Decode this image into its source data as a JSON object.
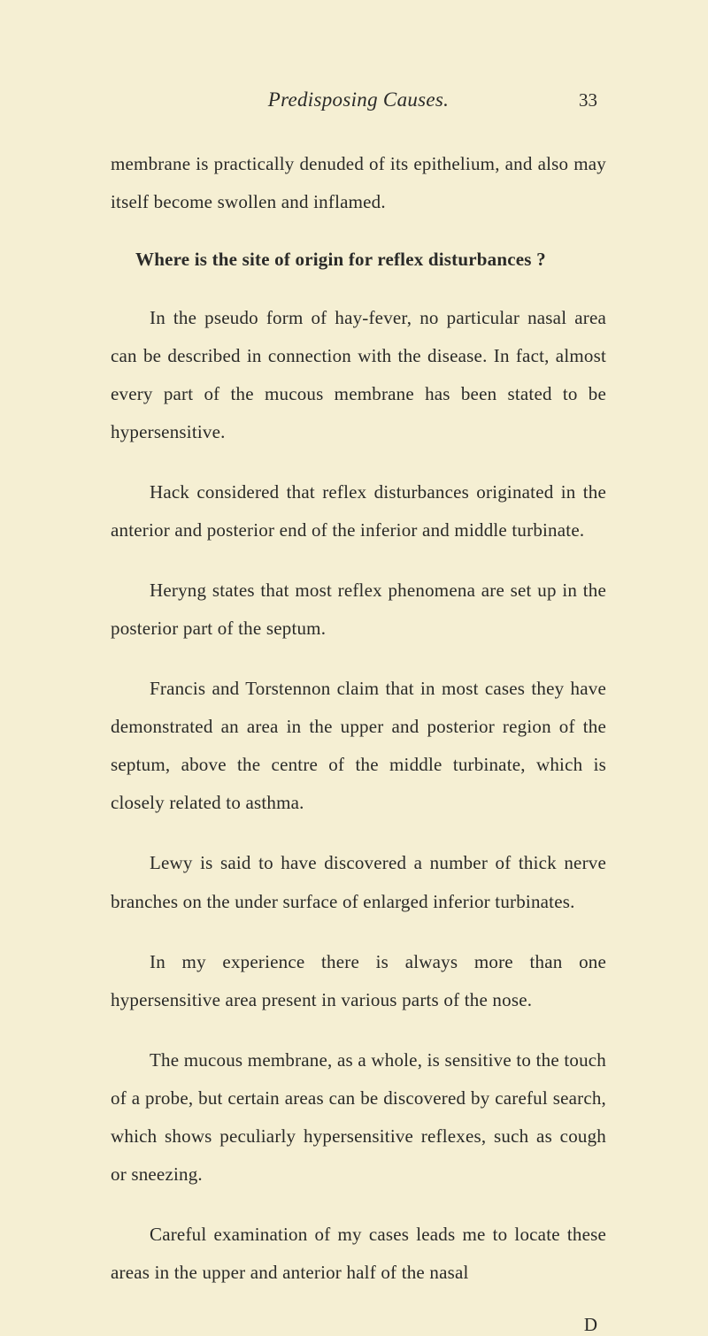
{
  "header": {
    "title": "Predisposing Causes.",
    "pageNumber": "33"
  },
  "paragraphs": {
    "p1": "membrane is practically denuded of its epithelium, and also may itself become swollen and inflamed.",
    "h1": "Where is the site of origin for reflex disturbances ?",
    "p2": "In the pseudo form of hay-fever, no particular nasal area can be described in connection with the disease. In fact, almost every part of the mucous membrane has been stated to be hypersensitive.",
    "p3": "Hack considered that reflex disturbances originated in the anterior and posterior end of the inferior and middle turbinate.",
    "p4": "Heryng states that most reflex phenomena are set up in the posterior part of the septum.",
    "p5": "Francis and Torstennon claim that in most cases they have demonstrated an area in the upper and posterior region of the septum, above the centre of the middle turbinate, which is closely related to asthma.",
    "p6": "Lewy is said to have discovered a number of thick nerve branches on the under surface of enlarged inferior turbinates.",
    "p7": "In my experience there is always more than one hypersensitive area present in various parts of the nose.",
    "p8": "The mucous membrane, as a whole, is sensitive to the touch of a probe, but certain areas can be discovered by careful search, which shows peculiarly hypersensitive reflexes, such as cough or sneezing.",
    "p9": "Careful examination of my cases leads me to locate these areas in the upper and anterior half of the nasal"
  },
  "signature": "D",
  "colors": {
    "background": "#f5efd3",
    "text": "#2a2a28"
  }
}
